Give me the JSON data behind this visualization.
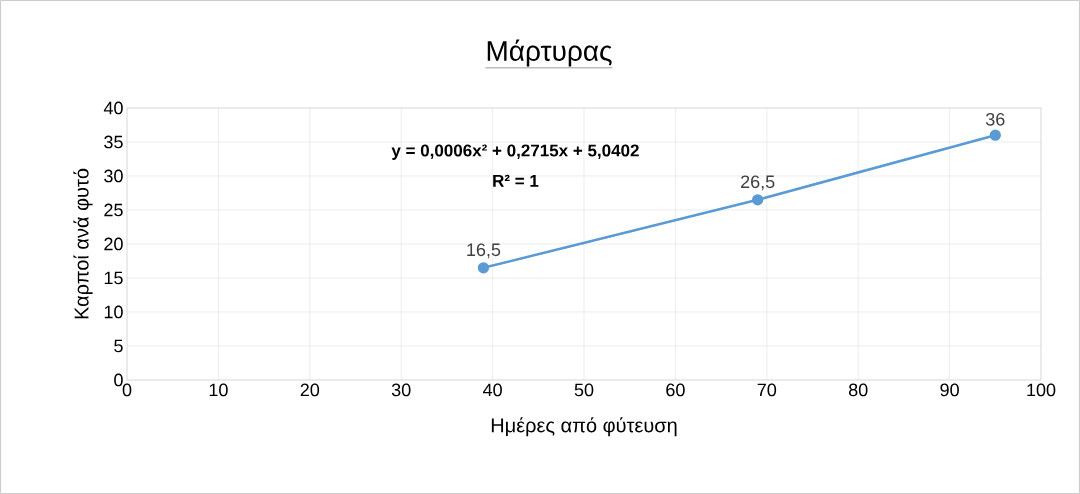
{
  "chart_data": {
    "type": "line",
    "title": "Μάρτυρας",
    "xlabel": "Ημέρες από φύτευση",
    "ylabel": "Καρποί ανά φυτό",
    "annotations": [
      "y = 0,0006x² + 0,2715x + 5,0402",
      "R² = 1"
    ],
    "series": [
      {
        "color": "#5b9bd5",
        "x": [
          39,
          69,
          95
        ],
        "values": [
          16.5,
          26.5,
          36
        ],
        "value_labels": [
          "16,5",
          "26,5",
          "36"
        ],
        "marker": "circle",
        "line_style": "solid"
      },
      {
        "color": "#5b9bd5",
        "x": [
          39,
          50,
          60,
          69,
          80,
          95
        ],
        "values": [
          16.5,
          20.1,
          23.5,
          26.5,
          30.6,
          36
        ],
        "marker": "none",
        "line_style": "dotted"
      }
    ],
    "xlim": [
      0,
      100
    ],
    "xticks": [
      0,
      10,
      20,
      30,
      40,
      50,
      60,
      70,
      80,
      90,
      100
    ],
    "ylim": [
      0,
      40
    ],
    "yticks": [
      0,
      5,
      10,
      15,
      20,
      25,
      30,
      35,
      40
    ],
    "grid": true
  }
}
